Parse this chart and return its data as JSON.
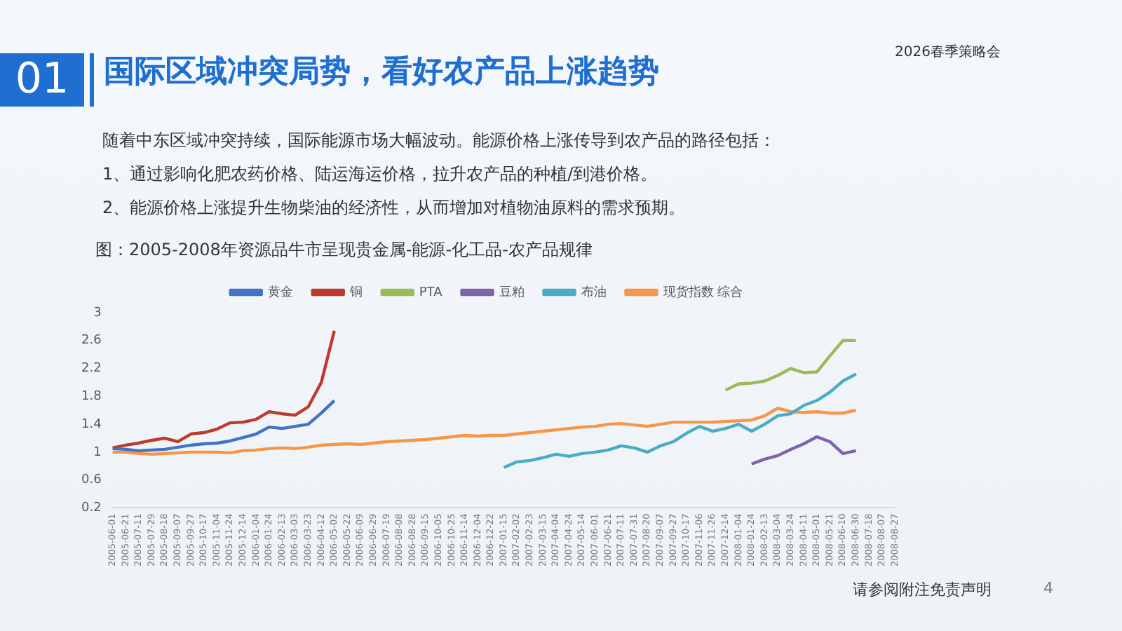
{
  "chart_data": {
    "type": "line",
    "title": "图：2005-2008年资源品牛市呈现贵金属-能源-化工品-农产品规律",
    "annotations": [
      "01",
      "国际区域冲突局势，看好农产品上涨趋势",
      "2026春季策略会",
      "随着中东区域冲突持续，国际能源市场大幅波动。能源价格上涨传导到农产品的路径包括：",
      "1、通过影响化肥农药价格、陆运海运价格，拉升农产品的种植/到港价格。",
      "2、能源价格上涨提升生物柴油的经济性，从而增加对植物油原料的需求预期。",
      "请参阅附注免责声明",
      "4"
    ],
    "categories": [
      "2005-06-01",
      "2005-06-21",
      "2005-07-11",
      "2005-07-29",
      "2005-08-18",
      "2005-09-07",
      "2005-09-27",
      "2005-10-17",
      "2005-11-04",
      "2005-11-24",
      "2005-12-14",
      "2006-01-04",
      "2006-01-24",
      "2006-02-13",
      "2006-03-03",
      "2006-03-23",
      "2006-04-12",
      "2006-05-02",
      "2006-05-22",
      "2006-06-09",
      "2006-06-29",
      "2006-07-19",
      "2006-08-08",
      "2006-08-28",
      "2006-09-15",
      "2006-10-05",
      "2006-10-25",
      "2006-11-14",
      "2006-12-04",
      "2006-12-22",
      "2007-01-15",
      "2007-02-02",
      "2007-02-23",
      "2007-03-15",
      "2007-04-04",
      "2007-04-24",
      "2007-05-14",
      "2007-06-01",
      "2007-06-21",
      "2007-07-11",
      "2007-07-31",
      "2007-08-20",
      "2007-09-07",
      "2007-09-27",
      "2007-10-17",
      "2007-11-06",
      "2007-11-26",
      "2007-12-14",
      "2008-01-04",
      "2008-01-24",
      "2008-02-13",
      "2008-03-04",
      "2008-03-24",
      "2008-04-11",
      "2008-05-01",
      "2008-05-21",
      "2008-06-10",
      "2008-06-30",
      "2008-07-18",
      "2008-08-07",
      "2008-08-27"
    ],
    "series": [
      {
        "name": "黄金",
        "color": "#4472c4",
        "values": [
          1.05,
          1.04,
          1.02,
          1.03,
          1.04,
          1.07,
          1.1,
          1.12,
          1.13,
          1.16,
          1.21,
          1.26,
          1.36,
          1.34,
          1.37,
          1.4,
          1.56,
          1.74,
          null,
          null,
          null,
          null,
          null,
          null,
          null,
          null,
          null,
          null,
          null,
          null,
          null,
          null,
          null,
          null,
          null,
          null,
          null,
          null,
          null,
          null,
          null,
          null,
          null,
          null,
          null,
          null,
          null,
          null,
          null,
          null,
          null,
          null,
          null,
          null,
          null,
          null,
          null,
          null,
          null,
          null,
          null
        ]
      },
      {
        "name": "铜",
        "color": "#c0392b",
        "values": [
          1.06,
          1.1,
          1.13,
          1.17,
          1.2,
          1.15,
          1.26,
          1.28,
          1.33,
          1.42,
          1.43,
          1.47,
          1.58,
          1.55,
          1.53,
          1.65,
          2.0,
          2.74,
          null,
          null,
          null,
          null,
          null,
          null,
          null,
          null,
          null,
          null,
          null,
          null,
          null,
          null,
          null,
          null,
          null,
          null,
          null,
          null,
          null,
          null,
          null,
          null,
          null,
          null,
          null,
          null,
          null,
          null,
          null,
          null,
          null,
          null,
          null,
          null,
          null,
          null,
          null,
          null,
          null,
          null,
          null
        ]
      },
      {
        "name": "PTA",
        "color": "#9bbb59",
        "values": [
          null,
          null,
          null,
          null,
          null,
          null,
          null,
          null,
          null,
          null,
          null,
          null,
          null,
          null,
          null,
          null,
          null,
          null,
          null,
          null,
          null,
          null,
          null,
          null,
          null,
          null,
          null,
          null,
          null,
          null,
          null,
          null,
          null,
          null,
          null,
          null,
          null,
          null,
          null,
          null,
          null,
          null,
          null,
          null,
          null,
          null,
          null,
          1.89,
          1.98,
          1.99,
          2.02,
          2.1,
          2.2,
          2.14,
          2.15,
          2.38,
          2.6,
          2.6,
          null,
          null,
          null
        ]
      },
      {
        "name": "豆粕",
        "color": "#7f62a8",
        "values": [
          null,
          null,
          null,
          null,
          null,
          null,
          null,
          null,
          null,
          null,
          null,
          null,
          null,
          null,
          null,
          null,
          null,
          null,
          null,
          null,
          null,
          null,
          null,
          null,
          null,
          null,
          null,
          null,
          null,
          null,
          null,
          null,
          null,
          null,
          null,
          null,
          null,
          null,
          null,
          null,
          null,
          null,
          null,
          null,
          null,
          null,
          null,
          null,
          null,
          0.83,
          0.9,
          0.95,
          1.04,
          1.12,
          1.22,
          1.15,
          0.98,
          1.02,
          null,
          null,
          null
        ]
      },
      {
        "name": "布油",
        "color": "#4bacc6",
        "values": [
          null,
          null,
          null,
          null,
          null,
          null,
          null,
          null,
          null,
          null,
          null,
          null,
          null,
          null,
          null,
          null,
          null,
          null,
          null,
          null,
          null,
          null,
          null,
          null,
          null,
          null,
          null,
          null,
          null,
          null,
          0.78,
          0.86,
          0.88,
          0.92,
          0.97,
          0.94,
          0.98,
          1.0,
          1.03,
          1.09,
          1.06,
          1.0,
          1.09,
          1.15,
          1.27,
          1.37,
          1.3,
          1.34,
          1.4,
          1.3,
          1.4,
          1.52,
          1.55,
          1.67,
          1.74,
          1.86,
          2.02,
          2.12,
          null,
          null,
          null
        ]
      },
      {
        "name": "现货指数 综合",
        "color": "#f79646",
        "values": [
          1.0,
          1.0,
          0.98,
          0.97,
          0.98,
          0.99,
          1.0,
          1.0,
          1.0,
          0.99,
          1.02,
          1.03,
          1.05,
          1.06,
          1.05,
          1.07,
          1.1,
          1.11,
          1.12,
          1.11,
          1.13,
          1.15,
          1.16,
          1.17,
          1.18,
          1.2,
          1.22,
          1.24,
          1.23,
          1.24,
          1.24,
          1.26,
          1.28,
          1.3,
          1.32,
          1.34,
          1.36,
          1.37,
          1.4,
          1.41,
          1.39,
          1.37,
          1.4,
          1.43,
          1.43,
          1.43,
          1.43,
          1.44,
          1.45,
          1.46,
          1.52,
          1.63,
          1.58,
          1.57,
          1.58,
          1.56,
          1.56,
          1.6,
          null,
          null,
          null
        ]
      }
    ],
    "ylim": [
      0.2,
      3
    ],
    "yticks": [
      0.2,
      0.6,
      1,
      1.4,
      1.8,
      2.2,
      2.6,
      3
    ],
    "legend": "top"
  }
}
